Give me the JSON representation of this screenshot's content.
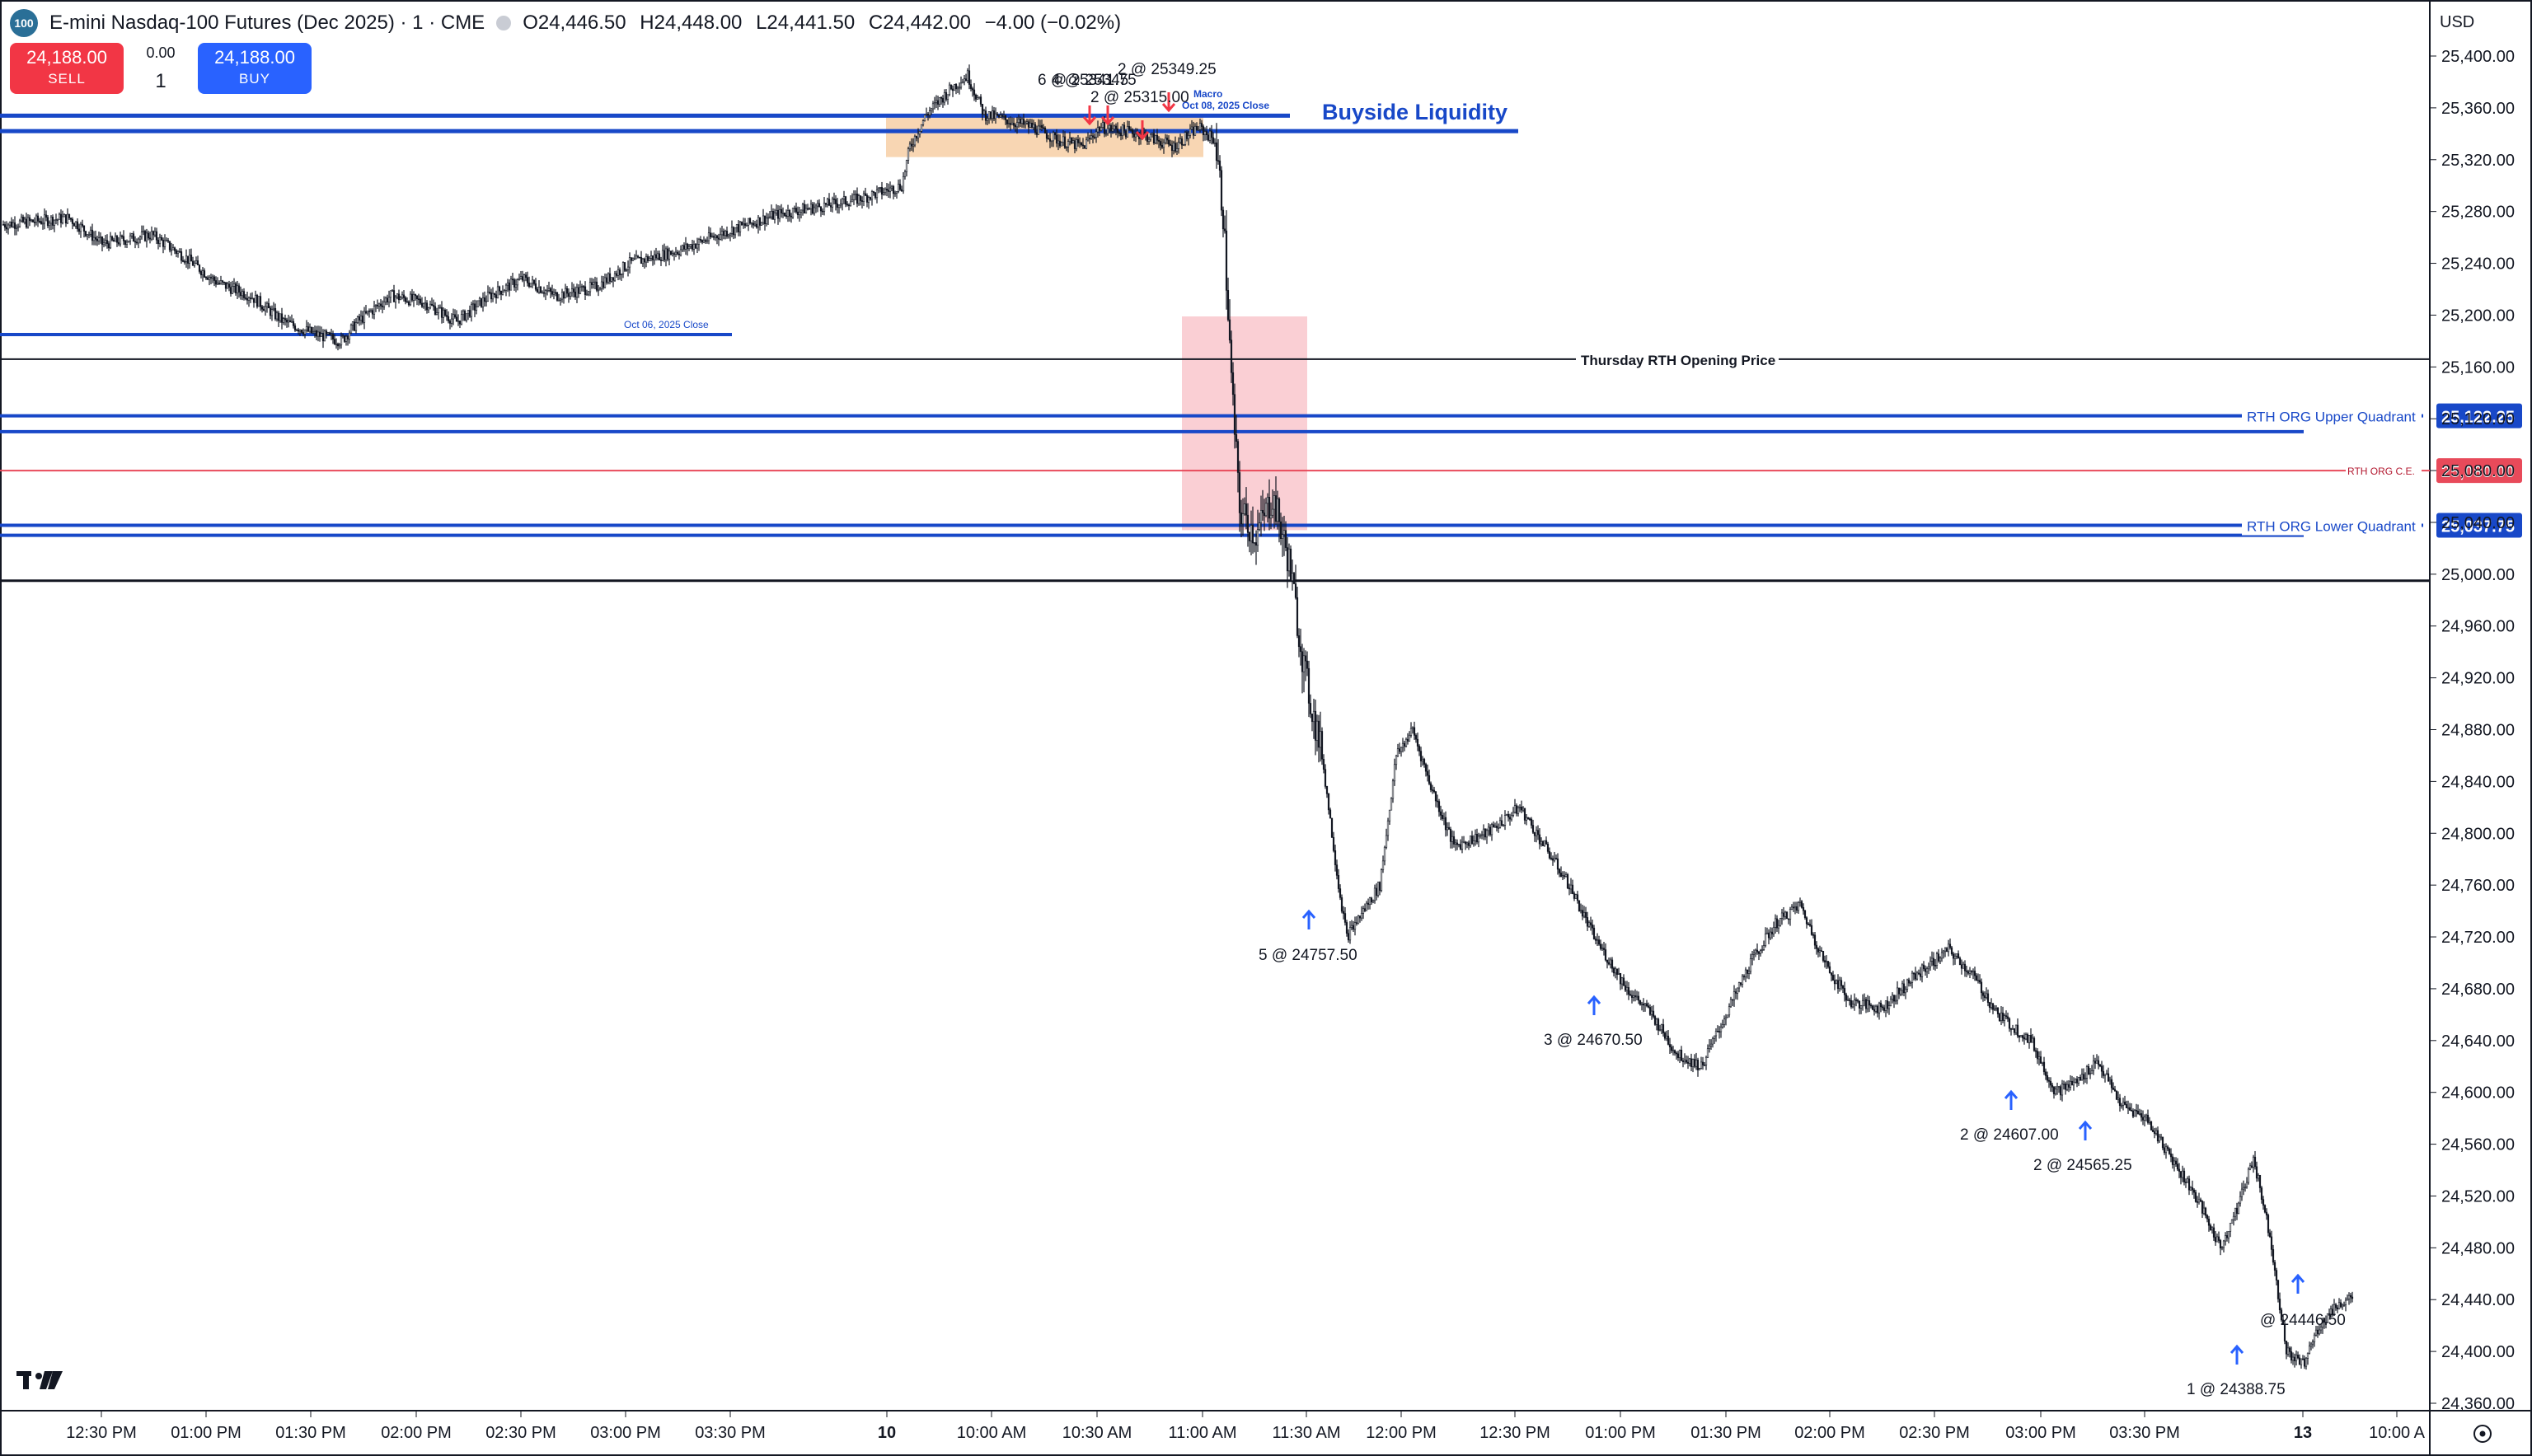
{
  "header": {
    "logo_text": "100",
    "title": "E-mini Nasdaq-100 Futures (Dec 2025) · 1 · CME",
    "ohlc": {
      "open": "O24,446.50",
      "high": "H24,448.00",
      "low": "L24,441.50",
      "close": "C24,442.00",
      "change": "−4.00 (−0.02%)"
    }
  },
  "trade_panel": {
    "sell_price": "24,188.00",
    "sell_label": "SELL",
    "buy_price": "24,188.00",
    "buy_label": "BUY",
    "spread": "0.00",
    "quantity": "1"
  },
  "currency": "USD",
  "colors": {
    "up_bar": "#131722",
    "blue_line": "#1848c8",
    "red_line": "#e84a5a",
    "bull_arrow": "#2962ff",
    "bear_arrow": "#f23645",
    "pink_zone": "#f9c7cd",
    "orange_zone": "#f5c89a"
  },
  "chart_data": {
    "type": "candlestick",
    "y_axis": {
      "min": 24325,
      "max": 25430,
      "ticks": [
        "25,400.00",
        "25,360.00",
        "25,320.00",
        "25,280.00",
        "25,240.00",
        "25,200.00",
        "25,160.00",
        "25,120.00",
        "25,080.00",
        "25,040.00",
        "25,000.00",
        "24,960.00",
        "24,920.00",
        "24,880.00",
        "24,840.00",
        "24,800.00",
        "24,760.00",
        "24,720.00",
        "24,680.00",
        "24,640.00",
        "24,600.00",
        "24,560.00",
        "24,520.00",
        "24,480.00",
        "24,440.00",
        "24,400.00",
        "24,360.00"
      ]
    },
    "x_axis_ticks": [
      "12:30 PM",
      "01:00 PM",
      "01:30 PM",
      "02:00 PM",
      "02:30 PM",
      "03:00 PM",
      "03:30 PM",
      "10",
      "10:00 AM",
      "10:30 AM",
      "11:00 AM",
      "11:30 AM",
      "12:00 PM",
      "12:30 PM",
      "01:00 PM",
      "01:30 PM",
      "02:00 PM",
      "02:30 PM",
      "03:00 PM",
      "03:30 PM",
      "13",
      "10:00 A"
    ],
    "price_path": [
      [
        0,
        25270
      ],
      [
        40,
        25275
      ],
      [
        60,
        25255
      ],
      [
        90,
        25262
      ],
      [
        110,
        25245
      ],
      [
        130,
        25225
      ],
      [
        150,
        25215
      ],
      [
        170,
        25195
      ],
      [
        190,
        25185
      ],
      [
        205,
        25180
      ],
      [
        215,
        25195
      ],
      [
        235,
        25215
      ],
      [
        255,
        25210
      ],
      [
        275,
        25195
      ],
      [
        295,
        25215
      ],
      [
        315,
        25228
      ],
      [
        335,
        25215
      ],
      [
        360,
        25222
      ],
      [
        380,
        25240
      ],
      [
        410,
        25250
      ],
      [
        440,
        25265
      ],
      [
        470,
        25278
      ],
      [
        500,
        25285
      ],
      [
        520,
        25290
      ],
      [
        545,
        25300
      ],
      [
        550,
        25330
      ],
      [
        560,
        25355
      ],
      [
        575,
        25375
      ],
      [
        585,
        25385
      ],
      [
        595,
        25355
      ],
      [
        610,
        25350
      ],
      [
        625,
        25345
      ],
      [
        640,
        25335
      ],
      [
        655,
        25330
      ],
      [
        665,
        25345
      ],
      [
        690,
        25340
      ],
      [
        710,
        25330
      ],
      [
        725,
        25345
      ],
      [
        735,
        25335
      ],
      [
        740,
        25280
      ],
      [
        745,
        25150
      ],
      [
        750,
        25050
      ],
      [
        760,
        25030
      ],
      [
        770,
        25060
      ],
      [
        780,
        25010
      ],
      [
        790,
        24920
      ],
      [
        800,
        24860
      ],
      [
        810,
        24760
      ],
      [
        815,
        24720
      ],
      [
        825,
        24740
      ],
      [
        835,
        24760
      ],
      [
        845,
        24860
      ],
      [
        855,
        24880
      ],
      [
        865,
        24840
      ],
      [
        880,
        24790
      ],
      [
        900,
        24800
      ],
      [
        920,
        24820
      ],
      [
        935,
        24790
      ],
      [
        950,
        24760
      ],
      [
        965,
        24720
      ],
      [
        985,
        24680
      ],
      [
        1000,
        24660
      ],
      [
        1015,
        24630
      ],
      [
        1030,
        24620
      ],
      [
        1045,
        24660
      ],
      [
        1060,
        24700
      ],
      [
        1075,
        24730
      ],
      [
        1090,
        24745
      ],
      [
        1105,
        24700
      ],
      [
        1120,
        24670
      ],
      [
        1140,
        24665
      ],
      [
        1160,
        24690
      ],
      [
        1180,
        24710
      ],
      [
        1195,
        24690
      ],
      [
        1210,
        24660
      ],
      [
        1230,
        24640
      ],
      [
        1245,
        24600
      ],
      [
        1260,
        24610
      ],
      [
        1270,
        24625
      ],
      [
        1285,
        24590
      ],
      [
        1300,
        24580
      ],
      [
        1315,
        24550
      ],
      [
        1330,
        24520
      ],
      [
        1345,
        24480
      ],
      [
        1355,
        24510
      ],
      [
        1365,
        24550
      ],
      [
        1375,
        24490
      ],
      [
        1385,
        24400
      ],
      [
        1395,
        24390
      ],
      [
        1405,
        24420
      ],
      [
        1415,
        24435
      ],
      [
        1425,
        24442
      ]
    ]
  },
  "levels": [
    {
      "name": "Buyside Liquidity",
      "price": 25342,
      "label": "Buyside Liquidity"
    },
    {
      "name": "Oct 06, 2025 Close",
      "price": 25185,
      "label": "Oct 06, 2025 Close"
    },
    {
      "name": "Thursday RTH Opening Price",
      "price": 25166,
      "label": "Thursday RTH Opening Price"
    },
    {
      "name": "RTH ORG Upper Quadrant",
      "price": 25122.25,
      "label": "RTH ORG Upper Quadrant",
      "tag": "25,122.25"
    },
    {
      "name": "RTH ORG C.E.",
      "price": 25080,
      "label": "RTH ORG C.E.",
      "tag": "25,080.00"
    },
    {
      "name": "RTH ORG Lower Quadrant",
      "price": 25037.75,
      "label": "RTH ORG Lower Quadrant",
      "tag": "25,037.75"
    },
    {
      "name": "Round 25000",
      "price": 24995
    }
  ],
  "annotations": {
    "macro_label": "Macro",
    "oct08_label": "Oct 08, 2025 Close",
    "sell_fills": [
      {
        "label": "6 @ 25341.75",
        "price": 25345
      },
      {
        "label": "4 @ 25345",
        "price": 25345
      },
      {
        "label": "2 @ 25315.00",
        "price": 25335
      },
      {
        "label": "2 @ 25349.25",
        "price": 25350
      }
    ],
    "buy_fills": [
      {
        "label": "5 @ 24757.50",
        "price": 24715
      },
      {
        "label": "3 @ 24670.50",
        "price": 24670
      },
      {
        "label": "2 @ 24607.00",
        "price": 24580
      },
      {
        "label": "2 @ 24565.25",
        "price": 24565
      },
      {
        "label": "1 @ 24388.75",
        "price": 24390
      },
      {
        "label": "@ 24446.50",
        "price": 24420
      }
    ]
  }
}
